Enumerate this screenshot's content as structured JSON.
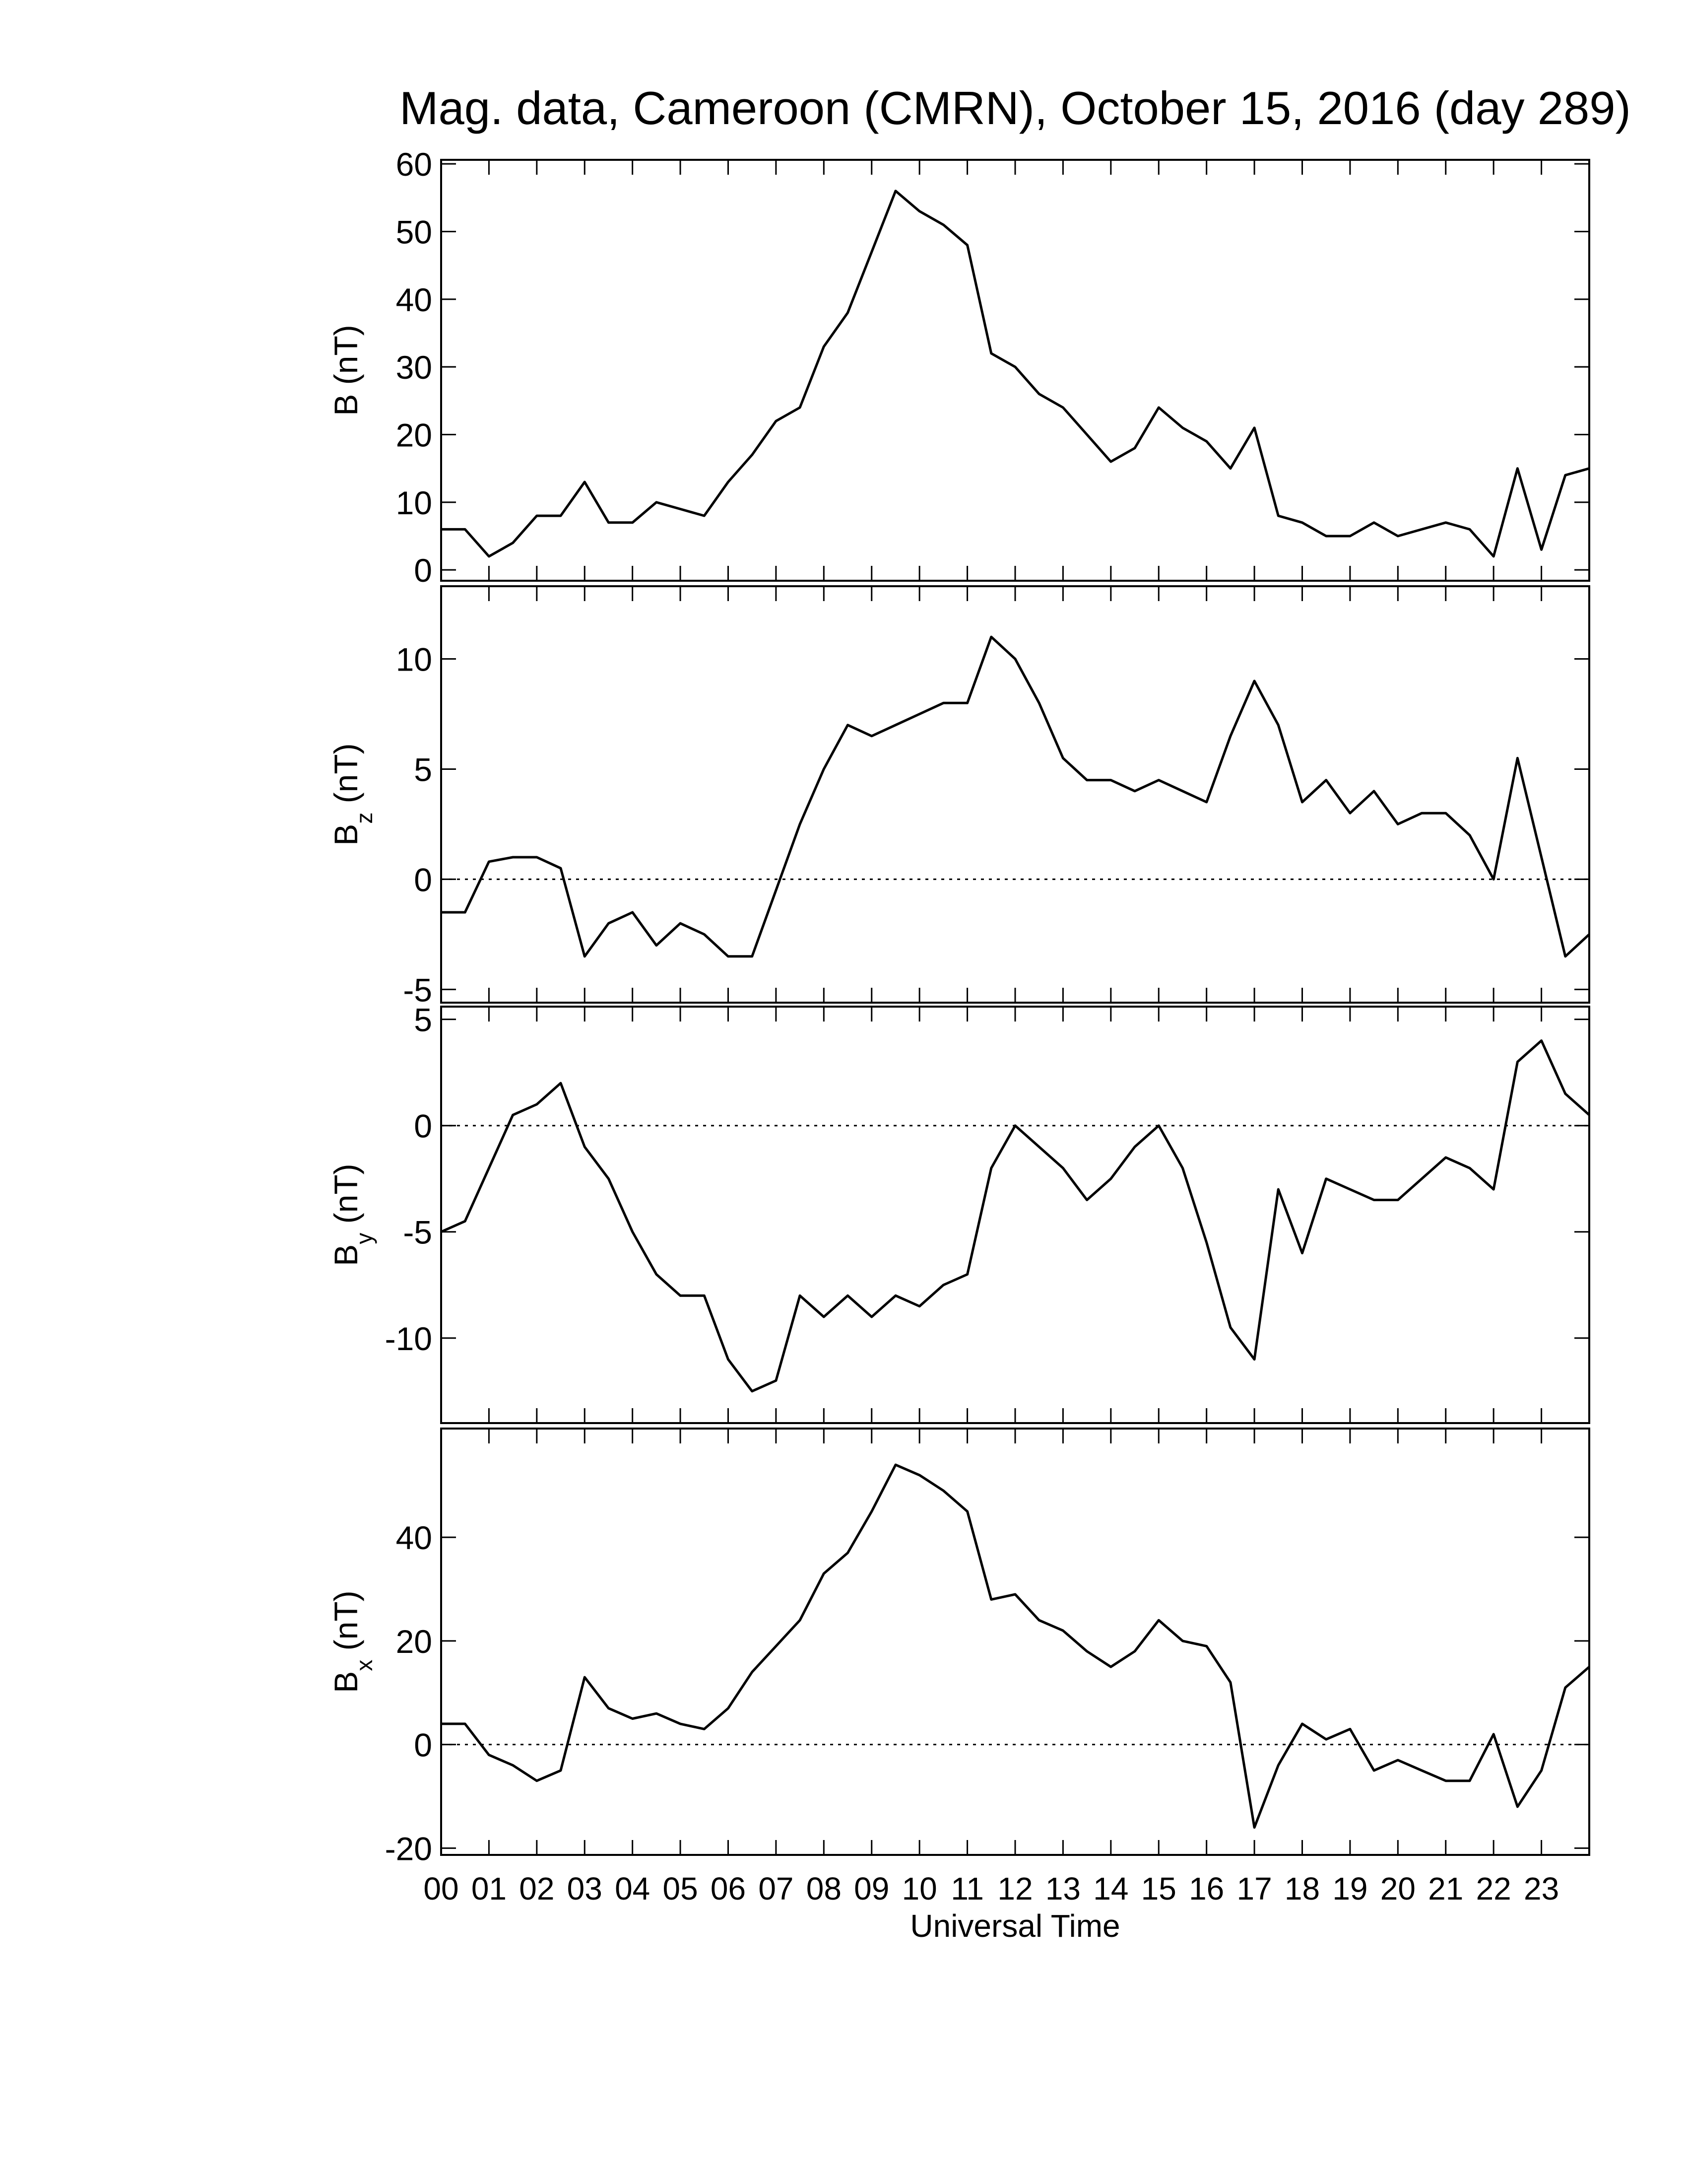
{
  "chart_data": [
    {
      "type": "line",
      "title": "Mag. data, Cameroon (CMRN), October 15, 2016 (day 289)",
      "ylabel_symbol": "B",
      "ylabel_unit": "(nT)",
      "x": [
        0,
        0.5,
        1,
        1.5,
        2,
        2.5,
        3,
        3.5,
        4,
        4.5,
        5,
        5.5,
        6,
        6.5,
        7,
        7.5,
        8,
        8.5,
        9,
        9.5,
        10,
        10.5,
        11,
        11.5,
        12,
        12.5,
        13,
        13.5,
        14,
        14.5,
        15,
        15.5,
        16,
        16.5,
        17,
        17.5,
        18,
        18.5,
        19,
        19.5,
        20,
        20.5,
        21,
        21.5,
        22,
        22.5,
        23,
        23.5,
        24
      ],
      "series": [
        {
          "color": "#000000",
          "values": [
            6,
            6,
            2,
            4,
            8,
            8,
            13,
            7,
            7,
            10,
            9,
            8,
            13,
            17,
            22,
            24,
            33,
            38,
            47,
            56,
            53,
            51,
            48,
            32,
            30,
            26,
            24,
            20,
            16,
            18,
            24,
            21,
            19,
            15,
            21,
            8,
            7,
            5,
            5,
            7,
            5,
            6,
            7,
            6,
            2,
            15,
            3,
            14,
            15
          ]
        }
      ],
      "xlim": [
        0,
        24
      ],
      "xticks": [
        0,
        1,
        2,
        3,
        4,
        5,
        6,
        7,
        8,
        9,
        10,
        11,
        12,
        13,
        14,
        15,
        16,
        17,
        18,
        19,
        20,
        21,
        22,
        23
      ],
      "ylim": [
        -1.6,
        60.6
      ],
      "yticks": [
        0,
        10,
        20,
        30,
        40,
        50,
        60
      ],
      "zero_line": false
    },
    {
      "type": "line",
      "ylabel_symbol": "B",
      "ylabel_subscript": "z",
      "ylabel_unit": "(nT)",
      "x": [
        0,
        0.5,
        1,
        1.5,
        2,
        2.5,
        3,
        3.5,
        4,
        4.5,
        5,
        5.5,
        6,
        6.5,
        7,
        7.5,
        8,
        8.5,
        9,
        9.5,
        10,
        10.5,
        11,
        11.5,
        12,
        12.5,
        13,
        13.5,
        14,
        14.5,
        15,
        15.5,
        16,
        16.5,
        17,
        17.5,
        18,
        18.5,
        19,
        19.5,
        20,
        20.5,
        21,
        21.5,
        22,
        22.5,
        23,
        23.5,
        24
      ],
      "series": [
        {
          "color": "#000000",
          "values": [
            -1.5,
            -1.5,
            0.8,
            1,
            1,
            0.5,
            -3.5,
            -2,
            -1.5,
            -3,
            -2,
            -2.5,
            -3.5,
            -3.5,
            -0.5,
            2.5,
            5,
            7,
            6.5,
            7,
            7.5,
            8,
            8,
            11,
            10,
            8,
            5.5,
            4.5,
            4.5,
            4,
            4.5,
            4,
            3.5,
            6.5,
            9,
            7,
            3.5,
            4.5,
            3,
            4,
            2.5,
            3,
            3,
            2,
            0,
            5.5,
            1,
            -3.5,
            -2.5
          ]
        }
      ],
      "xlim": [
        0,
        24
      ],
      "xticks": [
        0,
        1,
        2,
        3,
        4,
        5,
        6,
        7,
        8,
        9,
        10,
        11,
        12,
        13,
        14,
        15,
        16,
        17,
        18,
        19,
        20,
        21,
        22,
        23
      ],
      "ylim": [
        -5.6,
        13.3
      ],
      "yticks": [
        -5,
        0,
        5,
        10
      ],
      "zero_line": true
    },
    {
      "type": "line",
      "ylabel_symbol": "B",
      "ylabel_subscript": "y",
      "ylabel_unit": "(nT)",
      "x": [
        0,
        0.5,
        1,
        1.5,
        2,
        2.5,
        3,
        3.5,
        4,
        4.5,
        5,
        5.5,
        6,
        6.5,
        7,
        7.5,
        8,
        8.5,
        9,
        9.5,
        10,
        10.5,
        11,
        11.5,
        12,
        12.5,
        13,
        13.5,
        14,
        14.5,
        15,
        15.5,
        16,
        16.5,
        17,
        17.5,
        18,
        18.5,
        19,
        19.5,
        20,
        20.5,
        21,
        21.5,
        22,
        22.5,
        23,
        23.5,
        24
      ],
      "series": [
        {
          "color": "#000000",
          "values": [
            -5,
            -4.5,
            -2,
            0.5,
            1,
            2,
            -1,
            -2.5,
            -5,
            -7,
            -8,
            -8,
            -11,
            -12.5,
            -12,
            -8,
            -9,
            -8,
            -9,
            -8,
            -8.5,
            -7.5,
            -7,
            -2,
            0,
            -1,
            -2,
            -3.5,
            -2.5,
            -1,
            0,
            -2,
            -5.5,
            -9.5,
            -11,
            -3,
            -6,
            -2.5,
            -3,
            -3.5,
            -3.5,
            -2.5,
            -1.5,
            -2,
            -3,
            3,
            4,
            1.5,
            0.5
          ]
        }
      ],
      "xlim": [
        0,
        24
      ],
      "xticks": [
        0,
        1,
        2,
        3,
        4,
        5,
        6,
        7,
        8,
        9,
        10,
        11,
        12,
        13,
        14,
        15,
        16,
        17,
        18,
        19,
        20,
        21,
        22,
        23
      ],
      "ylim": [
        -14,
        5.6
      ],
      "yticks": [
        -10,
        -5,
        0,
        5
      ],
      "zero_line": true
    },
    {
      "type": "line",
      "ylabel_symbol": "B",
      "ylabel_subscript": "x",
      "ylabel_unit": "(nT)",
      "xlabel": "Universal Time",
      "x": [
        0,
        0.5,
        1,
        1.5,
        2,
        2.5,
        3,
        3.5,
        4,
        4.5,
        5,
        5.5,
        6,
        6.5,
        7,
        7.5,
        8,
        8.5,
        9,
        9.5,
        10,
        10.5,
        11,
        11.5,
        12,
        12.5,
        13,
        13.5,
        14,
        14.5,
        15,
        15.5,
        16,
        16.5,
        17,
        17.5,
        18,
        18.5,
        19,
        19.5,
        20,
        20.5,
        21,
        21.5,
        22,
        22.5,
        23,
        23.5,
        24
      ],
      "series": [
        {
          "color": "#000000",
          "values": [
            4,
            4,
            -2,
            -4,
            -7,
            -5,
            13,
            7,
            5,
            6,
            4,
            3,
            7,
            14,
            19,
            24,
            33,
            37,
            45,
            54,
            52,
            49,
            45,
            28,
            29,
            24,
            22,
            18,
            15,
            18,
            24,
            20,
            19,
            12,
            -16,
            -4,
            4,
            1,
            3,
            -5,
            -3,
            -5,
            -7,
            -7,
            2,
            -12,
            -5,
            11,
            15
          ]
        }
      ],
      "xlim": [
        0,
        24
      ],
      "xticks": [
        {
          "value": 0,
          "label": "00"
        },
        {
          "value": 1,
          "label": "01"
        },
        {
          "value": 2,
          "label": "02"
        },
        {
          "value": 3,
          "label": "03"
        },
        {
          "value": 4,
          "label": "04"
        },
        {
          "value": 5,
          "label": "05"
        },
        {
          "value": 6,
          "label": "06"
        },
        {
          "value": 7,
          "label": "07"
        },
        {
          "value": 8,
          "label": "08"
        },
        {
          "value": 9,
          "label": "09"
        },
        10,
        11,
        12,
        13,
        14,
        15,
        16,
        17,
        18,
        19,
        20,
        21,
        22,
        23
      ],
      "ylim": [
        -21.3,
        61
      ],
      "yticks": [
        -20,
        0,
        20,
        40
      ],
      "zero_line": true
    }
  ]
}
